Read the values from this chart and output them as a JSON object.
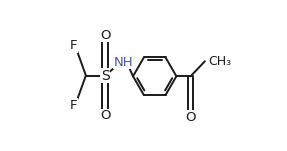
{
  "bg_color": "#ffffff",
  "line_color": "#1a1a1a",
  "n_color": "#4455bb",
  "font_size": 9.5,
  "lw": 1.4,
  "figsize": [
    2.87,
    1.51
  ],
  "dpi": 100,
  "xlim": [
    0.0,
    1.0
  ],
  "ylim": [
    0.0,
    1.0
  ]
}
